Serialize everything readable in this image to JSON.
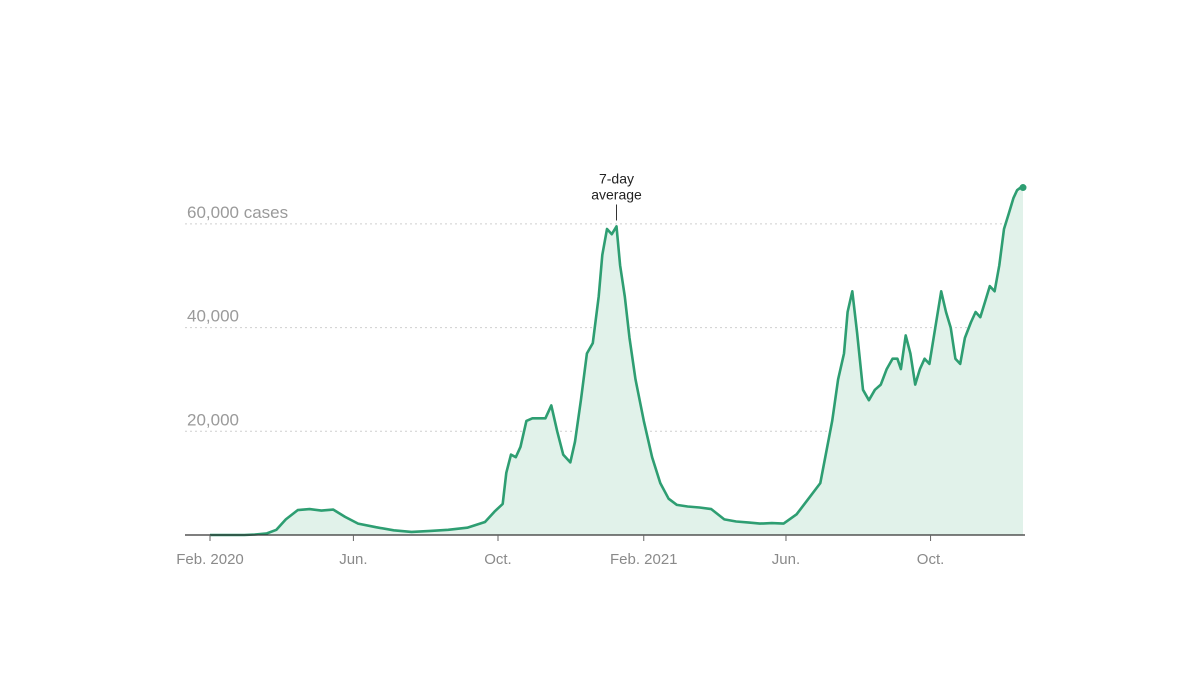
{
  "chart_data": {
    "type": "area",
    "title": "",
    "xlabel": "",
    "ylabel": "",
    "ylim": [
      0,
      70000
    ],
    "xlim": [
      "2020-02-01",
      "2021-12-18"
    ],
    "grid": true,
    "y_ticks": [
      {
        "value": 20000,
        "label": "20,000"
      },
      {
        "value": 40000,
        "label": "40,000"
      },
      {
        "value": 60000,
        "label": "60,000 cases"
      }
    ],
    "x_ticks": [
      {
        "date": "2020-02-01",
        "label": "Feb. 2020"
      },
      {
        "date": "2020-06-01",
        "label": "Jun."
      },
      {
        "date": "2020-10-01",
        "label": "Oct."
      },
      {
        "date": "2021-02-01",
        "label": "Feb. 2021"
      },
      {
        "date": "2021-06-01",
        "label": "Jun."
      },
      {
        "date": "2021-10-01",
        "label": "Oct."
      }
    ],
    "annotation": {
      "label_line1": "7-day",
      "label_line2": "average",
      "date": "2021-01-09",
      "value": 59500
    },
    "colors": {
      "line": "#2e9e72",
      "fill": "#e1f2ea",
      "axis": "#333333"
    },
    "series": [
      {
        "x": [
          "2020-02-01",
          "2020-02-15",
          "2020-03-01",
          "2020-03-10",
          "2020-03-20",
          "2020-03-28",
          "2020-04-05",
          "2020-04-15",
          "2020-04-25",
          "2020-05-05",
          "2020-05-15",
          "2020-05-25",
          "2020-06-05",
          "2020-06-20",
          "2020-07-05",
          "2020-07-20",
          "2020-08-05",
          "2020-08-20",
          "2020-09-05",
          "2020-09-20",
          "2020-09-28",
          "2020-10-05",
          "2020-10-08",
          "2020-10-12",
          "2020-10-16",
          "2020-10-20",
          "2020-10-25",
          "2020-10-30",
          "2020-11-05",
          "2020-11-10",
          "2020-11-15",
          "2020-11-20",
          "2020-11-25",
          "2020-12-01",
          "2020-12-05",
          "2020-12-10",
          "2020-12-15",
          "2020-12-20",
          "2020-12-25",
          "2020-12-28",
          "2021-01-01",
          "2021-01-05",
          "2021-01-09",
          "2021-01-12",
          "2021-01-16",
          "2021-01-20",
          "2021-01-25",
          "2021-02-01",
          "2021-02-08",
          "2021-02-15",
          "2021-02-22",
          "2021-03-01",
          "2021-03-10",
          "2021-03-20",
          "2021-03-30",
          "2021-04-10",
          "2021-04-20",
          "2021-05-01",
          "2021-05-10",
          "2021-05-20",
          "2021-05-30",
          "2021-06-10",
          "2021-06-20",
          "2021-06-30",
          "2021-07-10",
          "2021-07-15",
          "2021-07-20",
          "2021-07-23",
          "2021-07-27",
          "2021-07-31",
          "2021-08-05",
          "2021-08-10",
          "2021-08-15",
          "2021-08-20",
          "2021-08-25",
          "2021-08-30",
          "2021-09-03",
          "2021-09-06",
          "2021-09-10",
          "2021-09-14",
          "2021-09-18",
          "2021-09-22",
          "2021-09-26",
          "2021-09-30",
          "2021-10-05",
          "2021-10-10",
          "2021-10-14",
          "2021-10-18",
          "2021-10-22",
          "2021-10-26",
          "2021-10-30",
          "2021-11-04",
          "2021-11-08",
          "2021-11-12",
          "2021-11-16",
          "2021-11-20",
          "2021-11-24",
          "2021-11-28",
          "2021-12-02",
          "2021-12-06",
          "2021-12-10",
          "2021-12-13",
          "2021-12-16",
          "2021-12-18"
        ],
        "values": [
          0,
          0,
          0,
          100,
          300,
          1000,
          3000,
          4800,
          5000,
          4700,
          4900,
          3500,
          2200,
          1500,
          900,
          600,
          800,
          1000,
          1400,
          2500,
          4500,
          6000,
          12000,
          15500,
          15000,
          17000,
          22000,
          22500,
          22500,
          22500,
          25000,
          20000,
          15500,
          14000,
          18000,
          26000,
          35000,
          37000,
          46000,
          54000,
          59000,
          58000,
          59500,
          52000,
          46000,
          38000,
          30000,
          22000,
          15000,
          10000,
          7000,
          5800,
          5500,
          5300,
          5000,
          3000,
          2600,
          2400,
          2200,
          2300,
          2200,
          4000,
          7000,
          10000,
          22000,
          30000,
          35000,
          43000,
          47000,
          39000,
          28000,
          26000,
          28000,
          29000,
          32000,
          34000,
          34000,
          32000,
          38500,
          35000,
          29000,
          32000,
          34000,
          33000,
          40000,
          47000,
          43000,
          40000,
          34000,
          33000,
          38000,
          41000,
          43000,
          42000,
          45000,
          48000,
          47000,
          52000,
          59000,
          62000,
          65000,
          66500,
          67000,
          67000
        ]
      }
    ]
  }
}
